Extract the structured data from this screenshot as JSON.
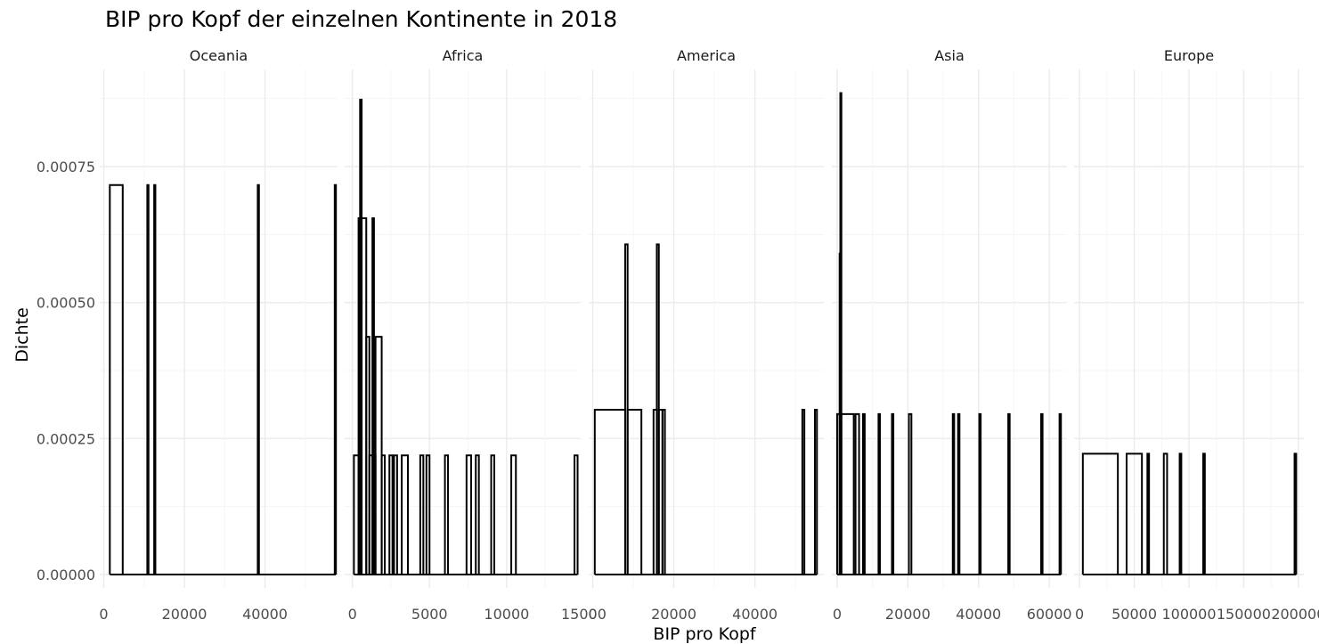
{
  "chart_data": {
    "type": "histogram",
    "title": "BIP pro Kopf der einzelnen Kontinente in 2018",
    "xlabel": "BIP pro Kopf",
    "ylabel": "Dichte",
    "ylim": [
      0,
      0.0009
    ],
    "y_ticks": [
      0,
      0.00025,
      0.0005,
      0.00075
    ],
    "y_tick_labels": [
      "0.00000",
      "0.00025",
      "0.00050",
      "0.00075"
    ],
    "grid": true,
    "facets": [
      {
        "name": "Oceania",
        "xlim": [
          -1000,
          58000
        ],
        "x_ticks": [
          0,
          20000,
          40000
        ],
        "x_tick_labels": [
          "0",
          "20000",
          "40000"
        ],
        "bars": [
          {
            "x0": 1500,
            "x1": 4700,
            "density": 0.000716
          },
          {
            "x0": 10800,
            "x1": 11100,
            "density": 0.000716
          },
          {
            "x0": 12500,
            "x1": 12800,
            "density": 0.000716
          },
          {
            "x0": 38200,
            "x1": 38500,
            "density": 0.000716
          },
          {
            "x0": 57300,
            "x1": 57600,
            "density": 0.000716
          }
        ]
      },
      {
        "name": "Africa",
        "xlim": [
          -500,
          14800
        ],
        "x_ticks": [
          0,
          5000,
          10000,
          15000
        ],
        "x_tick_labels": [
          "0",
          "5000",
          "10000",
          "15000"
        ],
        "bars": [
          {
            "x0": 100,
            "x1": 400,
            "density": 0.000219
          },
          {
            "x0": 400,
            "x1": 500,
            "density": 0.000655
          },
          {
            "x0": 500,
            "x1": 600,
            "density": 0.000873
          },
          {
            "x0": 600,
            "x1": 900,
            "density": 0.000655
          },
          {
            "x0": 900,
            "x1": 1100,
            "density": 0.000437
          },
          {
            "x0": 1100,
            "x1": 1300,
            "density": 0.000219
          },
          {
            "x0": 1300,
            "x1": 1400,
            "density": 0.000655
          },
          {
            "x0": 1400,
            "x1": 1500,
            "density": 0.000219
          },
          {
            "x0": 1500,
            "x1": 1900,
            "density": 0.000437
          },
          {
            "x0": 1900,
            "x1": 2100,
            "density": 0.000219
          },
          {
            "x0": 2400,
            "x1": 2600,
            "density": 0.000219
          },
          {
            "x0": 2700,
            "x1": 2900,
            "density": 0.000219
          },
          {
            "x0": 3200,
            "x1": 3600,
            "density": 0.000219
          },
          {
            "x0": 4400,
            "x1": 4600,
            "density": 0.000219
          },
          {
            "x0": 4800,
            "x1": 5000,
            "density": 0.000219
          },
          {
            "x0": 6000,
            "x1": 6200,
            "density": 0.000219
          },
          {
            "x0": 7400,
            "x1": 7700,
            "density": 0.000219
          },
          {
            "x0": 8000,
            "x1": 8200,
            "density": 0.000219
          },
          {
            "x0": 9000,
            "x1": 9200,
            "density": 0.000219
          },
          {
            "x0": 10300,
            "x1": 10600,
            "density": 0.000219
          },
          {
            "x0": 14400,
            "x1": 14600,
            "density": 0.000219
          }
        ]
      },
      {
        "name": "America",
        "xlim": [
          -1000,
          57000
        ],
        "x_ticks": [
          0,
          20000,
          40000
        ],
        "x_tick_labels": [
          "0",
          "20000",
          "40000"
        ],
        "bars": [
          {
            "x0": 500,
            "x1": 8000,
            "density": 0.000303
          },
          {
            "x0": 8000,
            "x1": 8600,
            "density": 0.000607
          },
          {
            "x0": 8600,
            "x1": 12000,
            "density": 0.000303
          },
          {
            "x0": 15000,
            "x1": 15800,
            "density": 0.000303
          },
          {
            "x0": 15800,
            "x1": 16300,
            "density": 0.000607
          },
          {
            "x0": 16300,
            "x1": 17200,
            "density": 0.000303
          },
          {
            "x0": 17200,
            "x1": 17800,
            "density": 0.000303
          },
          {
            "x0": 51700,
            "x1": 52200,
            "density": 0.000303
          },
          {
            "x0": 54800,
            "x1": 55300,
            "density": 0.000303
          }
        ]
      },
      {
        "name": "Asia",
        "xlim": [
          -1500,
          65000
        ],
        "x_ticks": [
          0,
          20000,
          40000,
          60000
        ],
        "x_tick_labels": [
          "0",
          "20000",
          "40000",
          "60000"
        ],
        "bars": [
          {
            "x0": 0,
            "x1": 700,
            "density": 0.000295
          },
          {
            "x0": 700,
            "x1": 900,
            "density": 0.00059
          },
          {
            "x0": 900,
            "x1": 1200,
            "density": 0.000885
          },
          {
            "x0": 1200,
            "x1": 4700,
            "density": 0.000295
          },
          {
            "x0": 5200,
            "x1": 6200,
            "density": 0.000295
          },
          {
            "x0": 7300,
            "x1": 7800,
            "density": 0.000295
          },
          {
            "x0": 11700,
            "x1": 12100,
            "density": 0.000295
          },
          {
            "x0": 15500,
            "x1": 15900,
            "density": 0.000295
          },
          {
            "x0": 20300,
            "x1": 21000,
            "density": 0.000295
          },
          {
            "x0": 32700,
            "x1": 33100,
            "density": 0.000295
          },
          {
            "x0": 34200,
            "x1": 34600,
            "density": 0.000295
          },
          {
            "x0": 40200,
            "x1": 40600,
            "density": 0.000295
          },
          {
            "x0": 48400,
            "x1": 48800,
            "density": 0.000295
          },
          {
            "x0": 57700,
            "x1": 58100,
            "density": 0.000295
          },
          {
            "x0": 62900,
            "x1": 63300,
            "density": 0.000295
          }
        ]
      },
      {
        "name": "Europe",
        "xlim": [
          -5000,
          205000
        ],
        "x_ticks": [
          0,
          50000,
          100000,
          150000,
          200000
        ],
        "x_tick_labels": [
          "0",
          "50000",
          "100000",
          "150000",
          "200000"
        ],
        "bars": [
          {
            "x0": 3000,
            "x1": 35000,
            "density": 0.000222
          },
          {
            "x0": 43000,
            "x1": 57000,
            "density": 0.000222
          },
          {
            "x0": 62000,
            "x1": 63500,
            "density": 0.000222
          },
          {
            "x0": 77000,
            "x1": 80000,
            "density": 0.000222
          },
          {
            "x0": 91500,
            "x1": 93000,
            "density": 0.000222
          },
          {
            "x0": 113000,
            "x1": 114500,
            "density": 0.000222
          },
          {
            "x0": 196500,
            "x1": 198000,
            "density": 0.000222
          }
        ]
      }
    ]
  }
}
